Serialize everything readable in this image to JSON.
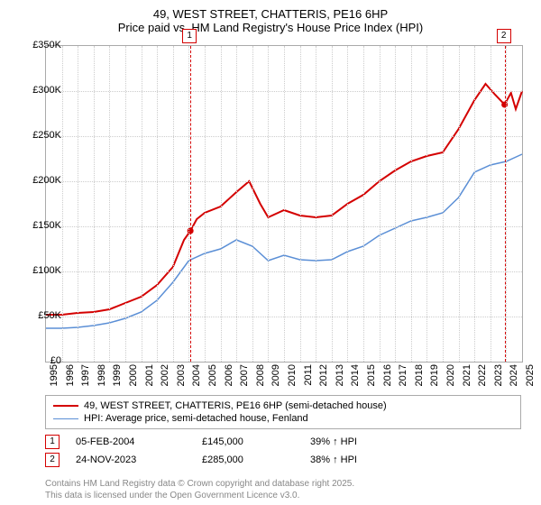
{
  "title": {
    "line1": "49, WEST STREET, CHATTERIS, PE16 6HP",
    "line2": "Price paid vs. HM Land Registry's House Price Index (HPI)"
  },
  "chart": {
    "type": "line",
    "background_color": "#ffffff",
    "border_color": "#aaaaaa",
    "grid_color": "#cccccc",
    "x": {
      "min": 1995,
      "max": 2025,
      "ticks": [
        1995,
        1996,
        1997,
        1998,
        1999,
        2000,
        2001,
        2002,
        2003,
        2004,
        2005,
        2006,
        2007,
        2008,
        2009,
        2010,
        2011,
        2012,
        2013,
        2014,
        2015,
        2016,
        2017,
        2018,
        2019,
        2020,
        2021,
        2022,
        2023,
        2024,
        2025
      ],
      "label_fontsize": 11
    },
    "y": {
      "min": 0,
      "max": 350000,
      "ticks": [
        0,
        50000,
        100000,
        150000,
        200000,
        250000,
        300000,
        350000
      ],
      "tick_labels": [
        "£0",
        "£50K",
        "£100K",
        "£150K",
        "£200K",
        "£250K",
        "£300K",
        "£350K"
      ],
      "label_fontsize": 11
    },
    "series": [
      {
        "id": "price_paid",
        "label": "49, WEST STREET, CHATTERIS, PE16 6HP (semi-detached house)",
        "color": "#d40000",
        "line_width": 2,
        "points": [
          [
            1995,
            52000
          ],
          [
            1996,
            52000
          ],
          [
            1997,
            54000
          ],
          [
            1998,
            55000
          ],
          [
            1999,
            58000
          ],
          [
            2000,
            65000
          ],
          [
            2001,
            72000
          ],
          [
            2002,
            85000
          ],
          [
            2003,
            105000
          ],
          [
            2003.7,
            135000
          ],
          [
            2004.1,
            145000
          ],
          [
            2004.5,
            158000
          ],
          [
            2005,
            165000
          ],
          [
            2006,
            172000
          ],
          [
            2007,
            188000
          ],
          [
            2007.8,
            200000
          ],
          [
            2008.5,
            175000
          ],
          [
            2009,
            160000
          ],
          [
            2010,
            168000
          ],
          [
            2011,
            162000
          ],
          [
            2012,
            160000
          ],
          [
            2013,
            162000
          ],
          [
            2014,
            175000
          ],
          [
            2015,
            185000
          ],
          [
            2016,
            200000
          ],
          [
            2017,
            212000
          ],
          [
            2018,
            222000
          ],
          [
            2019,
            228000
          ],
          [
            2020,
            232000
          ],
          [
            2021,
            258000
          ],
          [
            2022,
            290000
          ],
          [
            2022.7,
            308000
          ],
          [
            2023.3,
            296000
          ],
          [
            2023.9,
            285000
          ],
          [
            2024.3,
            298000
          ],
          [
            2024.6,
            280000
          ],
          [
            2025,
            300000
          ]
        ]
      },
      {
        "id": "hpi",
        "label": "HPI: Average price, semi-detached house, Fenland",
        "color": "#5b8fd6",
        "line_width": 1.5,
        "points": [
          [
            1995,
            37000
          ],
          [
            1996,
            37000
          ],
          [
            1997,
            38000
          ],
          [
            1998,
            40000
          ],
          [
            1999,
            43000
          ],
          [
            2000,
            48000
          ],
          [
            2001,
            55000
          ],
          [
            2002,
            68000
          ],
          [
            2003,
            88000
          ],
          [
            2004,
            112000
          ],
          [
            2005,
            120000
          ],
          [
            2006,
            125000
          ],
          [
            2007,
            135000
          ],
          [
            2008,
            128000
          ],
          [
            2009,
            112000
          ],
          [
            2010,
            118000
          ],
          [
            2011,
            113000
          ],
          [
            2012,
            112000
          ],
          [
            2013,
            113000
          ],
          [
            2014,
            122000
          ],
          [
            2015,
            128000
          ],
          [
            2016,
            140000
          ],
          [
            2017,
            148000
          ],
          [
            2018,
            156000
          ],
          [
            2019,
            160000
          ],
          [
            2020,
            165000
          ],
          [
            2021,
            182000
          ],
          [
            2022,
            210000
          ],
          [
            2023,
            218000
          ],
          [
            2024,
            222000
          ],
          [
            2025,
            230000
          ]
        ]
      }
    ],
    "markers": [
      {
        "n": "1",
        "x": 2004.1,
        "box_top": true,
        "color": "#d40000"
      },
      {
        "n": "2",
        "x": 2023.9,
        "box_top": true,
        "color": "#d40000"
      }
    ],
    "sale_points": [
      {
        "x": 2004.1,
        "y": 145000,
        "color": "#d40000"
      },
      {
        "x": 2023.9,
        "y": 285000,
        "color": "#d40000"
      }
    ]
  },
  "legend": {
    "items": [
      {
        "series": "price_paid"
      },
      {
        "series": "hpi"
      }
    ]
  },
  "events": [
    {
      "n": "1",
      "color": "#d40000",
      "date": "05-FEB-2004",
      "price": "£145,000",
      "delta": "39% ↑ HPI"
    },
    {
      "n": "2",
      "color": "#d40000",
      "date": "24-NOV-2023",
      "price": "£285,000",
      "delta": "38% ↑ HPI"
    }
  ],
  "attribution": {
    "line1": "Contains HM Land Registry data © Crown copyright and database right 2025.",
    "line2": "This data is licensed under the Open Government Licence v3.0."
  }
}
